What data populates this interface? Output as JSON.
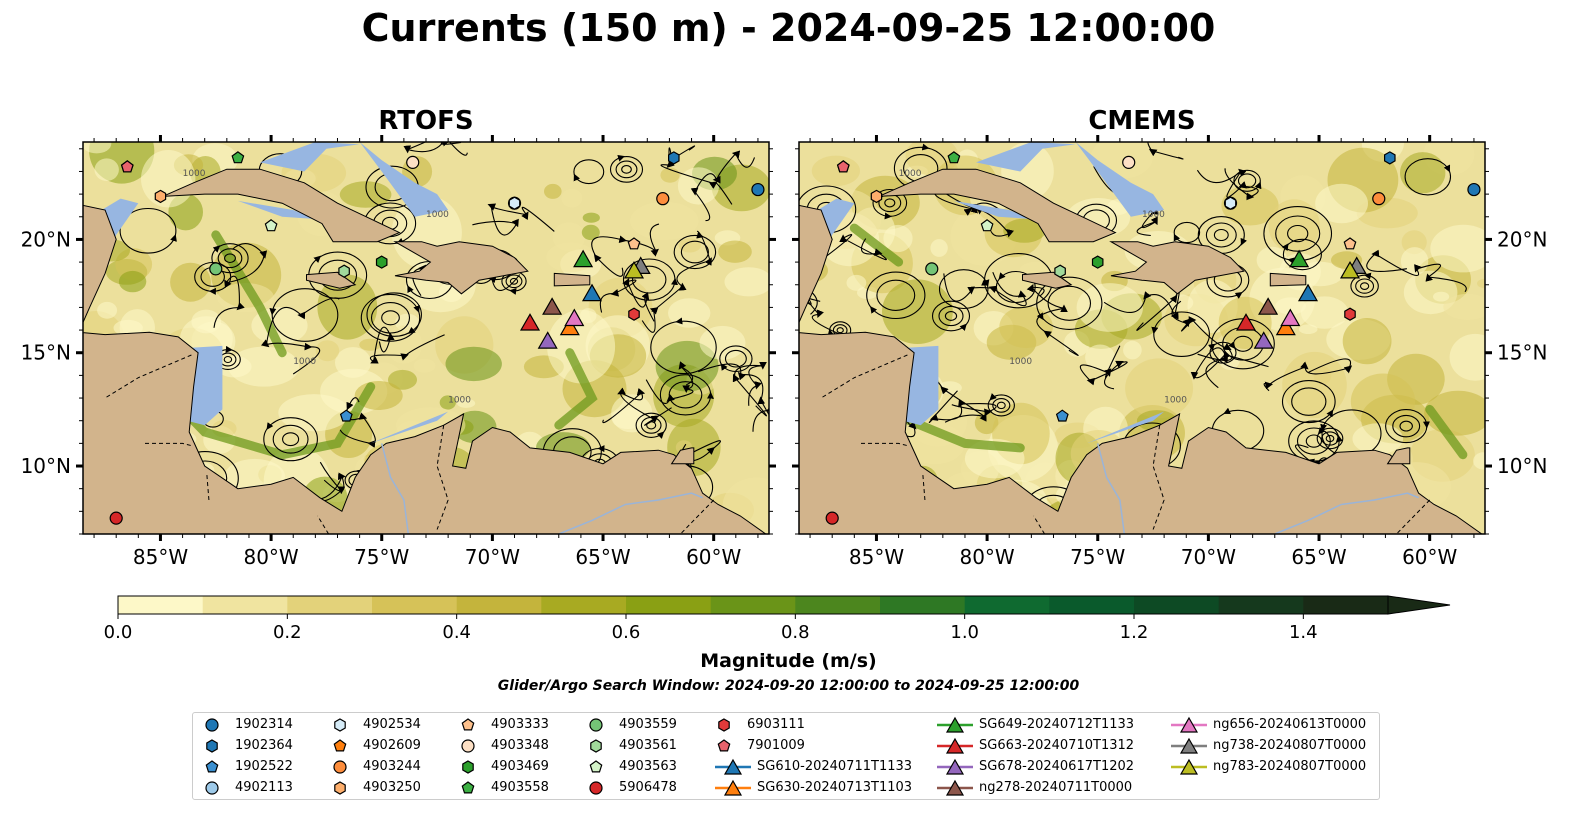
{
  "title": "Currents (150 m) - 2024-09-25 12:00:00",
  "panels": [
    {
      "id": "rtofs",
      "title": "RTOFS"
    },
    {
      "id": "cmems",
      "title": "CMEMS"
    }
  ],
  "axes": {
    "lon_range": [
      -88.5,
      -57.5
    ],
    "lat_range": [
      7.0,
      24.3
    ],
    "lon_ticks": [
      "85°W",
      "80°W",
      "75°W",
      "70°W",
      "65°W",
      "60°W"
    ],
    "lat_ticks": [
      "10°N",
      "15°N",
      "20°N"
    ],
    "lon_tick_values": [
      -85,
      -80,
      -75,
      -70,
      -65,
      -60
    ],
    "lat_tick_values": [
      10,
      15,
      20
    ]
  },
  "colorbar": {
    "label": "Magnitude (m/s)",
    "range": [
      0.0,
      1.5
    ],
    "extend": "max",
    "ticks": [
      "0.0",
      "0.2",
      "0.4",
      "0.6",
      "0.8",
      "1.0",
      "1.2",
      "1.4"
    ],
    "tick_values": [
      0.0,
      0.2,
      0.4,
      0.6,
      0.8,
      1.0,
      1.2,
      1.4
    ],
    "colors": [
      "#fdf8c8",
      "#f0e4a0",
      "#e3d27a",
      "#d6c258",
      "#c4b43c",
      "#a8aa22",
      "#8aa014",
      "#6a9418",
      "#4c861e",
      "#2e7824",
      "#0f6a30",
      "#0a5a2c",
      "#0d4a24",
      "#15391d",
      "#192a16"
    ]
  },
  "contour_labels": [
    "1000",
    "1000",
    "1000",
    "1000"
  ],
  "search_window": "Glider/Argo Search Window: 2024-09-20 12:00:00 to 2024-09-25 12:00:00",
  "colors": {
    "land": "#d2b48c",
    "shallow": "#97b6e1",
    "ocean_base": "#ece09c"
  },
  "legend": [
    {
      "label": "1902314",
      "marker": "circle",
      "color": "#1f77b4"
    },
    {
      "label": "1902364",
      "marker": "hexagon",
      "color": "#1f77b4"
    },
    {
      "label": "1902522",
      "marker": "pentagon",
      "color": "#3a8fd0"
    },
    {
      "label": "4902113",
      "marker": "circle",
      "color": "#9ecae9"
    },
    {
      "label": "4902534",
      "marker": "hexagon",
      "color": "#d6ecf8"
    },
    {
      "label": "4902609",
      "marker": "pentagon",
      "color": "#ff7f0e"
    },
    {
      "label": "4903244",
      "marker": "circle",
      "color": "#fd8d3c"
    },
    {
      "label": "4903250",
      "marker": "hexagon",
      "color": "#fdae6b"
    },
    {
      "label": "4903333",
      "marker": "pentagon",
      "color": "#fdc08c"
    },
    {
      "label": "4903348",
      "marker": "circle",
      "color": "#fde0c5"
    },
    {
      "label": "4903469",
      "marker": "hexagon",
      "color": "#2ca02c"
    },
    {
      "label": "4903558",
      "marker": "pentagon",
      "color": "#3cb043"
    },
    {
      "label": "4903559",
      "marker": "circle",
      "color": "#74c476"
    },
    {
      "label": "4903561",
      "marker": "hexagon",
      "color": "#a1d99b"
    },
    {
      "label": "4903563",
      "marker": "pentagon",
      "color": "#d4f3c8"
    },
    {
      "label": "5906478",
      "marker": "circle",
      "color": "#d62728"
    },
    {
      "label": "6903111",
      "marker": "hexagon",
      "color": "#e03a3a"
    },
    {
      "label": "7901009",
      "marker": "pentagon",
      "color": "#e8636c"
    },
    {
      "label": "SG610-20240711T1133",
      "marker": "triangle",
      "color": "#1f77b4"
    },
    {
      "label": "SG630-20240713T1103",
      "marker": "triangle",
      "color": "#ff7f0e"
    },
    {
      "label": "SG649-20240712T1133",
      "marker": "triangle",
      "color": "#2ca02c"
    },
    {
      "label": "SG663-20240710T1312",
      "marker": "triangle",
      "color": "#d62728"
    },
    {
      "label": "SG678-20240617T1202",
      "marker": "triangle",
      "color": "#9467bd"
    },
    {
      "label": "ng278-20240711T0000",
      "marker": "triangle",
      "color": "#8c564b"
    },
    {
      "label": "ng656-20240613T0000",
      "marker": "triangle",
      "color": "#e377c2"
    },
    {
      "label": "ng738-20240807T0000",
      "marker": "triangle",
      "color": "#7f7f7f"
    },
    {
      "label": "ng783-20240807T0000",
      "marker": "triangle",
      "color": "#bcbd22"
    }
  ],
  "markers": [
    {
      "id": "1902314",
      "lon": -58.0,
      "lat": 22.2
    },
    {
      "id": "1902364",
      "lon": -61.8,
      "lat": 23.6
    },
    {
      "id": "1902522",
      "lon": -76.6,
      "lat": 12.2
    },
    {
      "id": "4902113",
      "lon": -69.0,
      "lat": 21.6
    },
    {
      "id": "4902534",
      "lon": -69.0,
      "lat": 21.6
    },
    {
      "id": "4902609",
      "lon": -86.5,
      "lat": 23.2
    },
    {
      "id": "4903244",
      "lon": -62.3,
      "lat": 21.8
    },
    {
      "id": "4903250",
      "lon": -85.0,
      "lat": 21.9
    },
    {
      "id": "4903333",
      "lon": -63.6,
      "lat": 19.8
    },
    {
      "id": "4903348",
      "lon": -73.6,
      "lat": 23.4
    },
    {
      "id": "4903469",
      "lon": -75.0,
      "lat": 19.0
    },
    {
      "id": "4903558",
      "lon": -81.5,
      "lat": 23.6
    },
    {
      "id": "4903559",
      "lon": -82.5,
      "lat": 18.7
    },
    {
      "id": "4903561",
      "lon": -76.7,
      "lat": 18.6
    },
    {
      "id": "4903563",
      "lon": -80.0,
      "lat": 20.6
    },
    {
      "id": "5906478",
      "lon": -87.0,
      "lat": 7.7
    },
    {
      "id": "6903111",
      "lon": -63.6,
      "lat": 16.7
    },
    {
      "id": "7901009",
      "lon": -86.5,
      "lat": 23.2
    },
    {
      "id": "SG610-20240711T1133",
      "lon": -65.5,
      "lat": 17.6
    },
    {
      "id": "SG630-20240713T1103",
      "lon": -66.5,
      "lat": 16.1
    },
    {
      "id": "SG649-20240712T1133",
      "lon": -65.9,
      "lat": 19.1
    },
    {
      "id": "SG663-20240710T1312",
      "lon": -68.3,
      "lat": 16.3
    },
    {
      "id": "SG678-20240617T1202",
      "lon": -67.5,
      "lat": 15.5
    },
    {
      "id": "ng278-20240711T0000",
      "lon": -67.3,
      "lat": 17.0
    },
    {
      "id": "ng656-20240613T0000",
      "lon": -66.3,
      "lat": 16.5
    },
    {
      "id": "ng738-20240807T0000",
      "lon": -63.3,
      "lat": 18.8
    },
    {
      "id": "ng783-20240807T0000",
      "lon": -63.6,
      "lat": 18.6
    }
  ]
}
